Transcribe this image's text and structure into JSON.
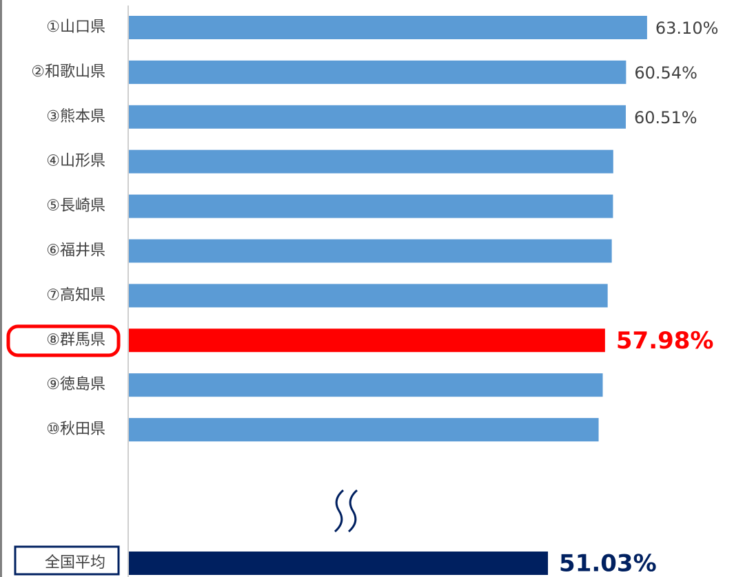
{
  "chart_data": {
    "type": "bar",
    "orientation": "horizontal",
    "categories": [
      "①山口県",
      "②和歌山県",
      "③熊本県",
      "④山形県",
      "⑤長崎県",
      "⑥福井県",
      "⑦高知県",
      "⑧群馬県",
      "⑨徳島県",
      "⑩秋田県",
      "全国平均"
    ],
    "values": [
      63.1,
      60.54,
      60.51,
      58.98,
      58.95,
      58.8,
      58.3,
      57.98,
      57.7,
      57.2,
      51.03
    ],
    "value_labels": [
      "63.10%",
      "60.54%",
      "60.51%",
      null,
      null,
      null,
      null,
      "57.98%",
      null,
      null,
      "51.03%"
    ],
    "colors": [
      "#5b9bd5",
      "#5b9bd5",
      "#5b9bd5",
      "#5b9bd5",
      "#5b9bd5",
      "#5b9bd5",
      "#5b9bd5",
      "#ff0000",
      "#5b9bd5",
      "#5b9bd5",
      "#002060"
    ],
    "xlim": [
      0,
      73.6
    ]
  }
}
